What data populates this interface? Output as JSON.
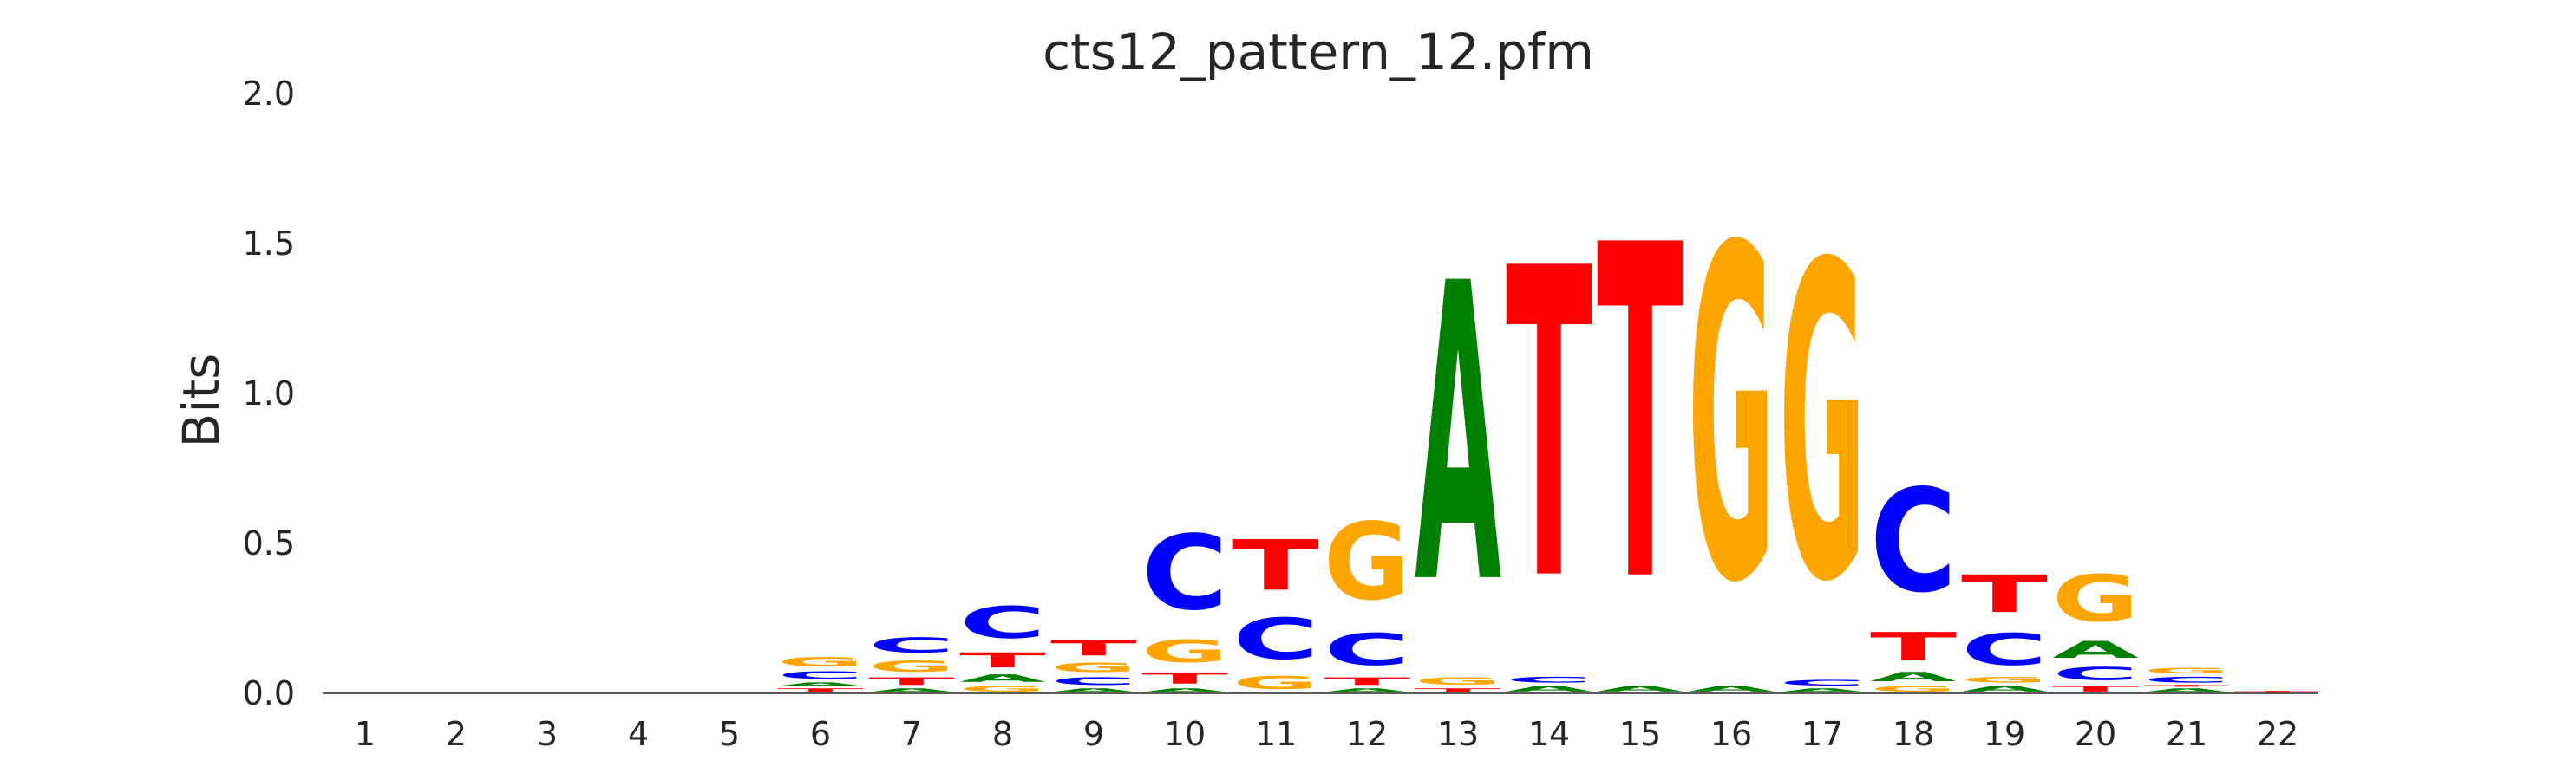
{
  "chart_data": {
    "type": "sequence-logo",
    "title": "cts12_pattern_12.pfm",
    "ylabel": "Bits",
    "xlabel": "",
    "ylim": [
      0,
      2.0
    ],
    "yticks": [
      "0.0",
      "0.5",
      "1.0",
      "1.5",
      "2.0"
    ],
    "ytick_values": [
      0,
      0.5,
      1.0,
      1.5,
      2.0
    ],
    "positions": [
      "1",
      "2",
      "3",
      "4",
      "5",
      "6",
      "7",
      "8",
      "9",
      "10",
      "11",
      "12",
      "13",
      "14",
      "15",
      "16",
      "17",
      "18",
      "19",
      "20",
      "21",
      "22"
    ],
    "colors": {
      "A": "#008000",
      "C": "#0000ff",
      "G": "#ffa500",
      "T": "#ff0000"
    },
    "stacks": [
      [],
      [],
      [],
      [],
      [],
      [
        {
          "letter": "T",
          "height": 0.02
        },
        {
          "letter": "A",
          "height": 0.02
        },
        {
          "letter": "C",
          "height": 0.04
        },
        {
          "letter": "G",
          "height": 0.05
        }
      ],
      [
        {
          "letter": "A",
          "height": 0.02
        },
        {
          "letter": "T",
          "height": 0.04
        },
        {
          "letter": "G",
          "height": 0.06
        },
        {
          "letter": "C",
          "height": 0.08
        }
      ],
      [
        {
          "letter": "G",
          "height": 0.03
        },
        {
          "letter": "A",
          "height": 0.04
        },
        {
          "letter": "T",
          "height": 0.08
        },
        {
          "letter": "C",
          "height": 0.17
        }
      ],
      [
        {
          "letter": "A",
          "height": 0.02
        },
        {
          "letter": "C",
          "height": 0.04
        },
        {
          "letter": "G",
          "height": 0.05
        },
        {
          "letter": "T",
          "height": 0.08
        }
      ],
      [
        {
          "letter": "A",
          "height": 0.02
        },
        {
          "letter": "T",
          "height": 0.06
        },
        {
          "letter": "G",
          "height": 0.12
        },
        {
          "letter": "C",
          "height": 0.4
        }
      ],
      [
        {
          "letter": "G",
          "height": 0.07
        },
        {
          "letter": "C",
          "height": 0.22
        },
        {
          "letter": "T",
          "height": 0.27
        }
      ],
      [
        {
          "letter": "A",
          "height": 0.02
        },
        {
          "letter": "T",
          "height": 0.04
        },
        {
          "letter": "C",
          "height": 0.17
        },
        {
          "letter": "G",
          "height": 0.41
        }
      ],
      [
        {
          "letter": "T",
          "height": 0.02
        },
        {
          "letter": "G",
          "height": 0.04
        },
        {
          "letter": "A",
          "height": 1.59
        }
      ],
      [
        {
          "letter": "A",
          "height": 0.03
        },
        {
          "letter": "C",
          "height": 0.03
        },
        {
          "letter": "T",
          "height": 1.65
        }
      ],
      [
        {
          "letter": "A",
          "height": 0.03
        },
        {
          "letter": "T",
          "height": 1.78
        }
      ],
      [
        {
          "letter": "A",
          "height": 0.03
        },
        {
          "letter": "G",
          "height": 1.77
        }
      ],
      [
        {
          "letter": "A",
          "height": 0.02
        },
        {
          "letter": "C",
          "height": 0.03
        },
        {
          "letter": "G",
          "height": 1.68
        }
      ],
      [
        {
          "letter": "G",
          "height": 0.03
        },
        {
          "letter": "A",
          "height": 0.05
        },
        {
          "letter": "T",
          "height": 0.15
        },
        {
          "letter": "C",
          "height": 0.55
        }
      ],
      [
        {
          "letter": "A",
          "height": 0.03
        },
        {
          "letter": "G",
          "height": 0.03
        },
        {
          "letter": "C",
          "height": 0.17
        },
        {
          "letter": "T",
          "height": 0.2
        }
      ],
      [
        {
          "letter": "T",
          "height": 0.03
        },
        {
          "letter": "C",
          "height": 0.07
        },
        {
          "letter": "A",
          "height": 0.09
        },
        {
          "letter": "G",
          "height": 0.25
        }
      ],
      [
        {
          "letter": "A",
          "height": 0.02
        },
        {
          "letter": "T",
          "height": 0.01
        },
        {
          "letter": "C",
          "height": 0.03
        },
        {
          "letter": "G",
          "height": 0.03
        }
      ],
      [
        {
          "letter": "T",
          "height": 0.01
        }
      ]
    ]
  }
}
